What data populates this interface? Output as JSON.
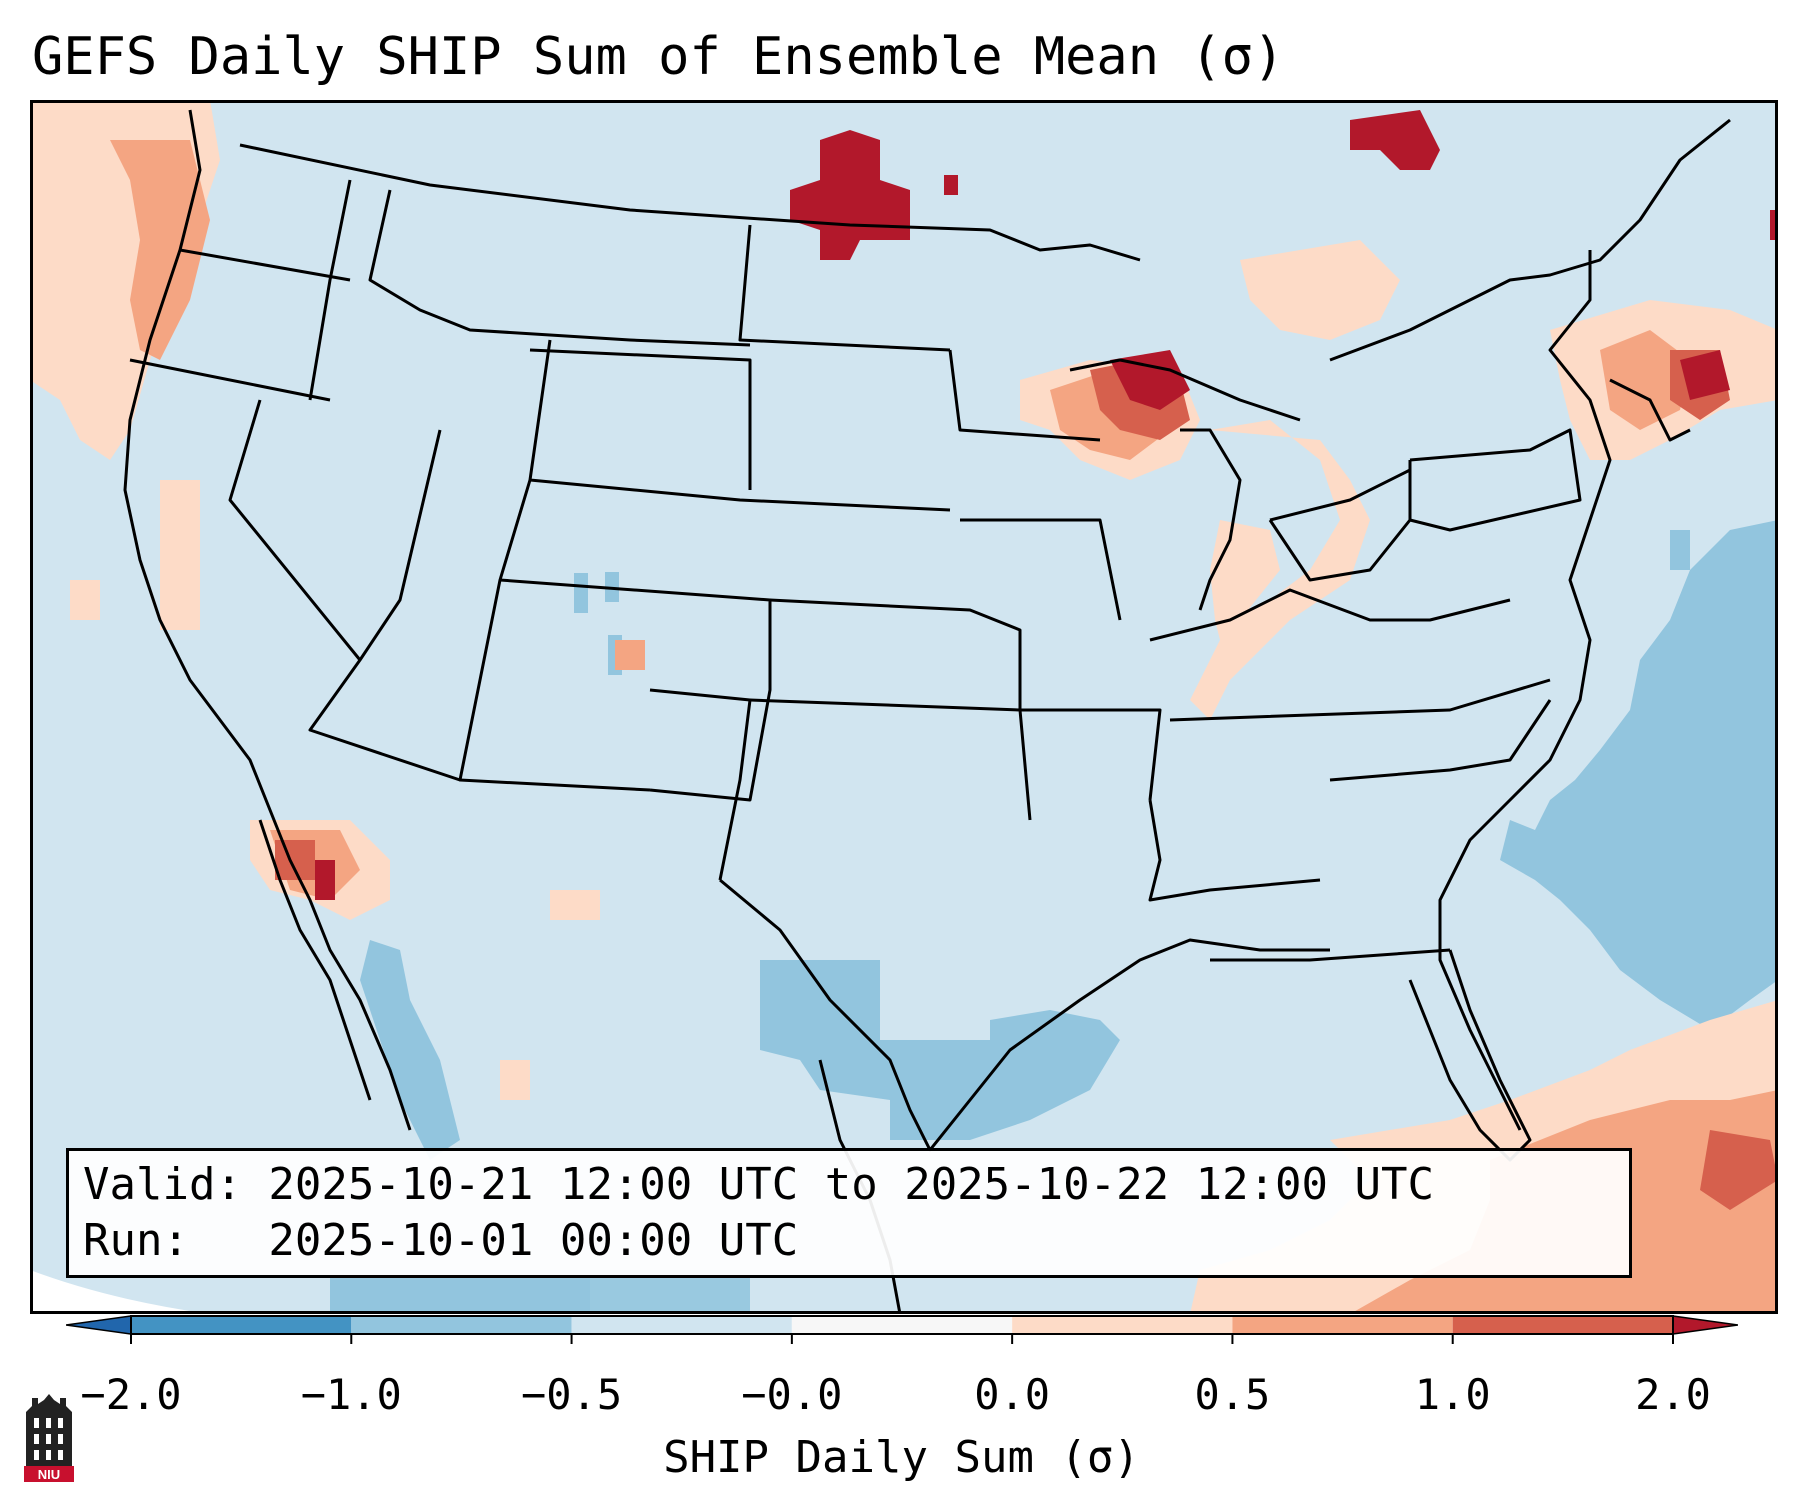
{
  "title": "GEFS Daily SHIP Sum of Ensemble Mean (σ)",
  "info": {
    "valid": "Valid: 2025-10-21 12:00 UTC to 2025-10-22 12:00 UTC",
    "run": "Run:   2025-10-01 00:00 UTC"
  },
  "colorbar": {
    "label": "SHIP Daily Sum (σ)",
    "ticks": [
      "−2.0",
      "−1.0",
      "−0.5",
      "−0.0",
      "0.0",
      "0.5",
      "1.0",
      "2.0"
    ],
    "bins": [
      {
        "range": "<-2.0",
        "color": "#2166ac"
      },
      {
        "range": "-2.0 to -1.0",
        "color": "#4393c3"
      },
      {
        "range": "-1.0 to -0.5",
        "color": "#92c5de"
      },
      {
        "range": "-0.5 to -0.0",
        "color": "#d1e5f0"
      },
      {
        "range": "-0.0 to 0.0",
        "color": "#f7f7f7"
      },
      {
        "range": "0.0 to 0.5",
        "color": "#fddbc7"
      },
      {
        "range": "0.5 to 1.0",
        "color": "#f4a582"
      },
      {
        "range": "1.0 to 2.0",
        "color": "#d6604d"
      },
      {
        "range": ">2.0",
        "color": "#b2182b"
      }
    ]
  },
  "logo": {
    "text": "NIU",
    "color": "#c8102e"
  },
  "map": {
    "projection": "Lambert conformal, CONUS",
    "background_color": "#d1e5f0",
    "anomaly_regions": [
      {
        "region": "North Dakota",
        "level": "> 2.0"
      },
      {
        "region": "Upper Michigan / northern Wisconsin",
        "level": "1.0 to 2.0"
      },
      {
        "region": "Northern Maine / Quebec",
        "level": "> 2.0"
      },
      {
        "region": "New England",
        "level": "1.0 to 2.0"
      },
      {
        "region": "Southern California / Baja",
        "level": "1.0 to 2.0"
      },
      {
        "region": "Northern Caribbean / Bahamas",
        "level": "1.0 to 2.0"
      },
      {
        "region": "Pacific Northwest coast",
        "level": "0.0 to 1.0"
      },
      {
        "region": "Western Atlantic",
        "level": "-1.0 to -0.5"
      },
      {
        "region": "Gulf of Mexico / South Texas",
        "level": "-1.0 to -0.5"
      },
      {
        "region": "Gulf of California / west Mexico",
        "level": "-1.0 to -0.5"
      }
    ]
  }
}
